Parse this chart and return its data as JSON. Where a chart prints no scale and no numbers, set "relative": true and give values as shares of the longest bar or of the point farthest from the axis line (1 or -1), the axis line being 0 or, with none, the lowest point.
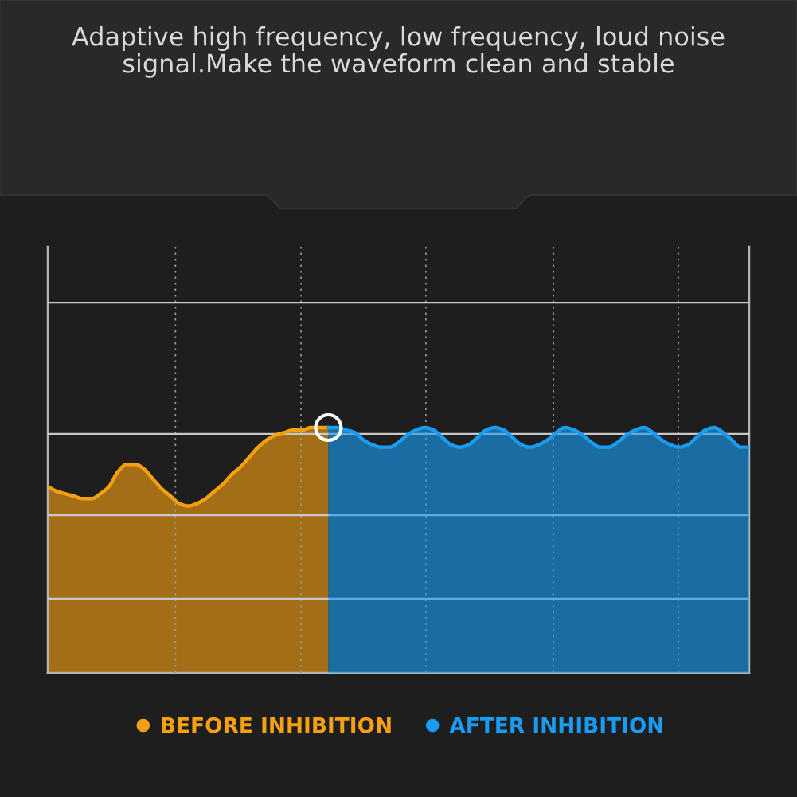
{
  "chart_data": {
    "type": "area",
    "relative": true,
    "title": "Adaptive high frequency, low frequency, loud noise signal.Make the waveform clean and stable",
    "categories": [
      null,
      null,
      null,
      null,
      null,
      null,
      null,
      null,
      null,
      null,
      null,
      null,
      null,
      null,
      null,
      null,
      null,
      null,
      null,
      null,
      null,
      null,
      null,
      null,
      null,
      null,
      null,
      null,
      null,
      null,
      null,
      null,
      null,
      null,
      null,
      null,
      null,
      null,
      null,
      null,
      null,
      null,
      null,
      null,
      null,
      null,
      null,
      null,
      null,
      null,
      null,
      null,
      null,
      null,
      null,
      null,
      null,
      null,
      null,
      null,
      null,
      null,
      null,
      null,
      null,
      null,
      null,
      null,
      null,
      null,
      null,
      null,
      null,
      null,
      null,
      null,
      null,
      null,
      null,
      null,
      null
    ],
    "series": [
      {
        "name": "BEFORE INHIBITION",
        "color": "#f5a012",
        "values": [
          0.76,
          0.74,
          0.73,
          0.72,
          0.71,
          0.71,
          0.73,
          0.76,
          0.82,
          0.85,
          0.85,
          0.83,
          0.79,
          0.75,
          0.72,
          0.69,
          0.68,
          0.69,
          0.71,
          0.74,
          0.77,
          0.81,
          0.84,
          0.88,
          0.92,
          0.95,
          0.97,
          0.98,
          0.99,
          0.99,
          1.0,
          1.0,
          1.0,
          null,
          null,
          null,
          null,
          null,
          null,
          null,
          null,
          null,
          null,
          null,
          null,
          null,
          null,
          null,
          null,
          null,
          null,
          null,
          null,
          null,
          null,
          null,
          null,
          null,
          null,
          null,
          null,
          null,
          null,
          null,
          null,
          null,
          null,
          null,
          null,
          null,
          null,
          null,
          null,
          null,
          null,
          null,
          null,
          null,
          null,
          null,
          null
        ]
      },
      {
        "name": "AFTER INHIBITION",
        "color": "#1a9cf2",
        "values": [
          null,
          null,
          null,
          null,
          null,
          null,
          null,
          null,
          null,
          null,
          null,
          null,
          null,
          null,
          null,
          null,
          null,
          null,
          null,
          null,
          null,
          null,
          null,
          null,
          null,
          null,
          null,
          null,
          null,
          null,
          null,
          null,
          1.0,
          1.0,
          0.99,
          0.98,
          0.95,
          0.93,
          0.92,
          0.92,
          0.94,
          0.97,
          0.99,
          1.0,
          0.99,
          0.96,
          0.93,
          0.92,
          0.93,
          0.96,
          0.99,
          1.0,
          0.99,
          0.96,
          0.93,
          0.92,
          0.93,
          0.95,
          0.98,
          1.0,
          0.99,
          0.97,
          0.94,
          0.92,
          0.92,
          0.94,
          0.97,
          0.99,
          1.0,
          0.98,
          0.95,
          0.93,
          0.92,
          0.93,
          0.96,
          0.99,
          1.0,
          0.98,
          0.95,
          0.92,
          0.92
        ]
      }
    ],
    "grid": true,
    "legend": "bottom"
  }
}
